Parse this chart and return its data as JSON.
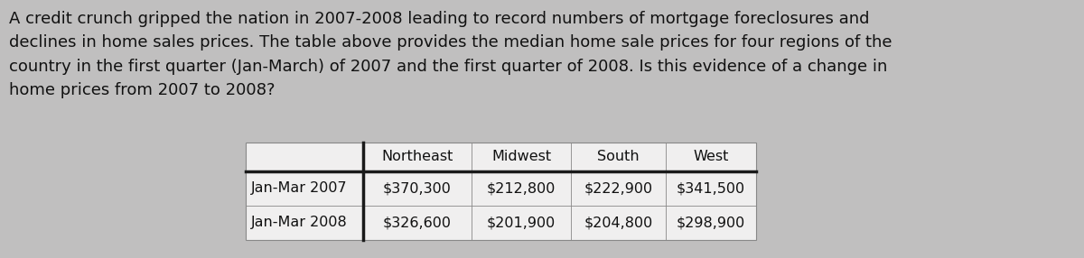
{
  "paragraph": "A credit crunch gripped the nation in 2007-2008 leading to record numbers of mortgage foreclosures and\ndeclines in home sales prices. The table above provides the median home sale prices for four regions of the\ncountry in the first quarter (Jan-March) of 2007 and the first quarter of 2008. Is this evidence of a change in\nhome prices from 2007 to 2008?",
  "col_headers": [
    "",
    "Northeast",
    "Midwest",
    "South",
    "West"
  ],
  "rows": [
    [
      "Jan-Mar 2007",
      "$370,300",
      "$212,800",
      "$222,900",
      "$341,500"
    ],
    [
      "Jan-Mar 2008",
      "$326,600",
      "$201,900",
      "$204,800",
      "$298,900"
    ]
  ],
  "bg_color": "#c0bfbf",
  "table_bg": "#f0efef",
  "table_border": "#888888",
  "thick_line": "#1a1a1a",
  "text_color": "#111111",
  "para_fontsize": 13.0,
  "table_fontsize": 11.5,
  "fig_width": 12.0,
  "fig_height": 2.86
}
